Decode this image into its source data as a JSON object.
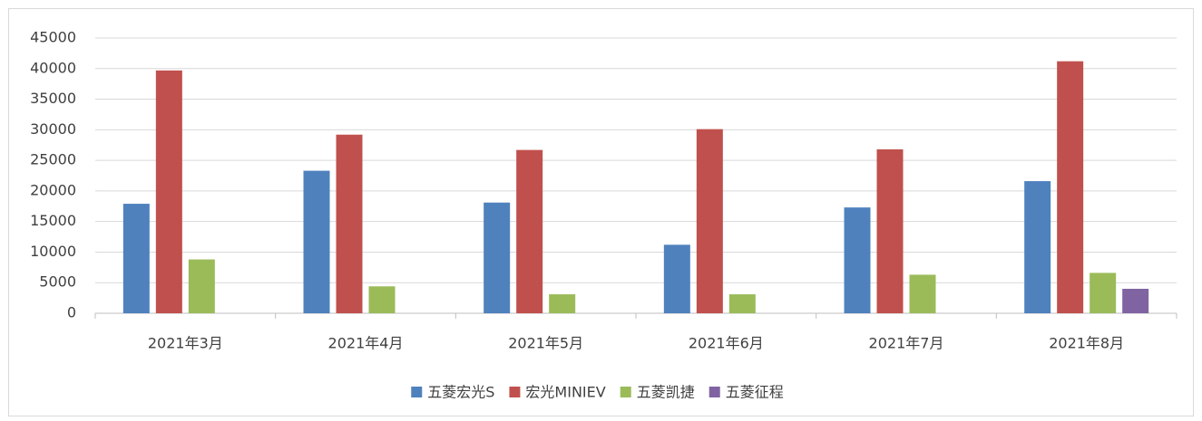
{
  "chart_data": {
    "type": "bar",
    "categories": [
      "2021年3月",
      "2021年4月",
      "2021年5月",
      "2021年6月",
      "2021年7月",
      "2021年8月"
    ],
    "series": [
      {
        "name": "五菱宏光S",
        "color": "#4f81bd",
        "values": [
          17900,
          23300,
          18100,
          11200,
          17300,
          21600
        ]
      },
      {
        "name": "宏光MINIEV",
        "color": "#c0504d",
        "values": [
          39700,
          29200,
          26700,
          30100,
          26800,
          41200
        ]
      },
      {
        "name": "五菱凯捷",
        "color": "#9bbb59",
        "values": [
          8800,
          4400,
          3100,
          3100,
          6300,
          6600
        ]
      },
      {
        "name": "五菱征程",
        "color": "#8064a2",
        "values": [
          null,
          null,
          null,
          null,
          null,
          4000
        ]
      }
    ],
    "ylim": [
      0,
      45000
    ],
    "yticks": [
      0,
      5000,
      10000,
      15000,
      20000,
      25000,
      30000,
      35000,
      40000,
      45000
    ],
    "grid": true,
    "legend": "bottom"
  }
}
